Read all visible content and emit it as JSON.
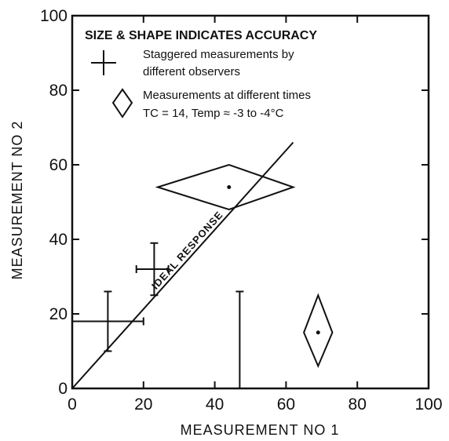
{
  "chart_data": {
    "type": "scatter",
    "title": "",
    "xlabel": "MEASUREMENT NO 1",
    "ylabel": "MEASUREMENT NO 2",
    "xlim": [
      0,
      100
    ],
    "ylim": [
      0,
      100
    ],
    "xticks": [
      "0",
      "20",
      "40",
      "60",
      "80",
      "100"
    ],
    "yticks": [
      "0",
      "20",
      "40",
      "60",
      "80",
      "100"
    ],
    "grid": false,
    "legend_position": "top-left",
    "legend": {
      "title": "SIZE & SHAPE INDICATES ACCURACY",
      "cross_line1": "Staggered measurements by",
      "cross_line2": "different observers",
      "diamond_line1": "Measurements at different times",
      "diamond_line2": "TC = 14,  Temp ≈ -3 to -4°C"
    },
    "crosses": [
      {
        "x": 10,
        "y": 18,
        "xmin": 0,
        "xmax": 20,
        "ymin": 10,
        "ymax": 26
      },
      {
        "x": 23,
        "y": 32,
        "xmin": 18,
        "xmax": 27,
        "ymin": 25,
        "ymax": 39
      },
      {
        "x": 47,
        "y": 0,
        "xmin": 47,
        "xmax": 47,
        "ymin": 0,
        "ymax": 26
      }
    ],
    "diamonds": [
      {
        "x": 44,
        "y": 54,
        "xmin": 24,
        "xmax": 62,
        "ymin": 48,
        "ymax": 60
      },
      {
        "x": 69,
        "y": 15,
        "xmin": 65,
        "xmax": 73,
        "ymin": 6,
        "ymax": 25
      }
    ],
    "ideal_line": {
      "label": "IDEAL RESPONSE",
      "x": [
        0,
        62
      ],
      "y": [
        0,
        66
      ]
    }
  }
}
